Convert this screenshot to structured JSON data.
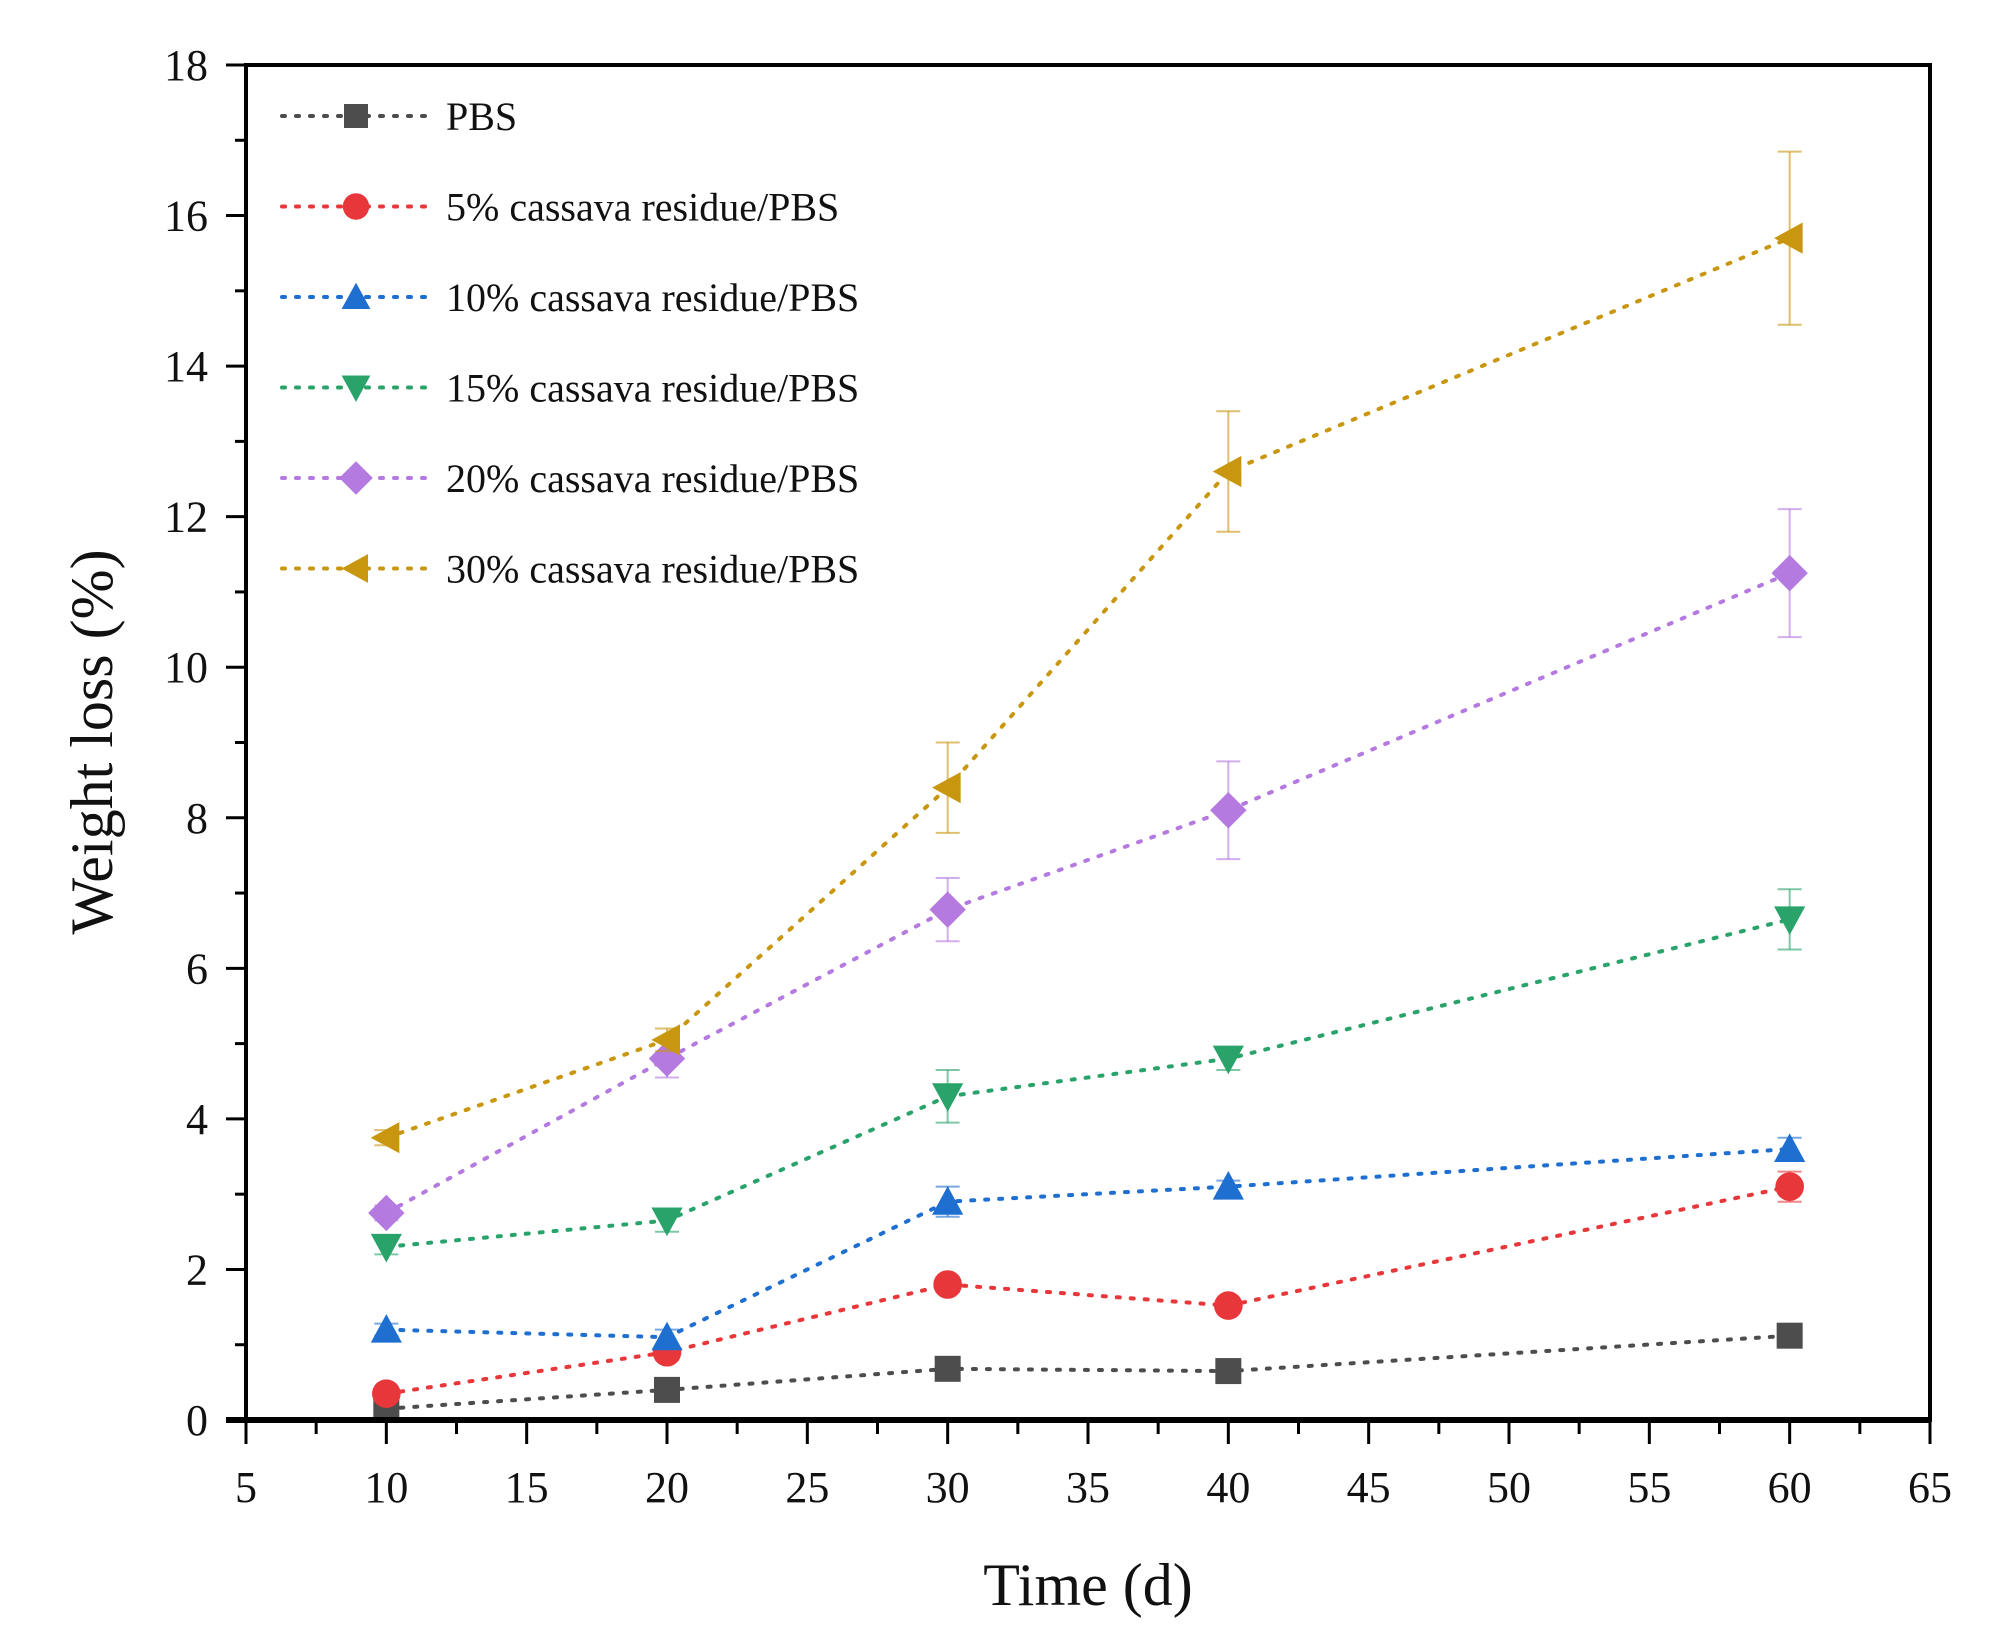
{
  "chart_data": {
    "type": "line",
    "title": "",
    "xlabel": "Time (d)",
    "ylabel": "Weight loss (%)",
    "xlim": [
      5,
      65
    ],
    "ylim": [
      0,
      18
    ],
    "xticks": [
      5,
      10,
      15,
      20,
      25,
      30,
      35,
      40,
      45,
      50,
      55,
      60,
      65
    ],
    "yticks": [
      0,
      2,
      4,
      6,
      8,
      10,
      12,
      14,
      16,
      18
    ],
    "grid": false,
    "legend_position": "top-left",
    "line_style": "dotted",
    "x": [
      10,
      20,
      30,
      40,
      60
    ],
    "series": [
      {
        "name": "PBS",
        "marker": "square",
        "color": "#4d4d4d",
        "values": [
          0.15,
          0.4,
          0.68,
          0.65,
          1.12
        ],
        "errors": [
          0.05,
          0.05,
          0.05,
          0.05,
          0.08
        ]
      },
      {
        "name": "5% cassava residue/PBS",
        "marker": "circle",
        "color": "#e8373a",
        "values": [
          0.35,
          0.9,
          1.8,
          1.52,
          3.1
        ],
        "errors": [
          0.08,
          0.1,
          0.1,
          0.08,
          0.2
        ]
      },
      {
        "name": "10% cassava residue/PBS",
        "marker": "triangle-up",
        "color": "#1f6fd1",
        "values": [
          1.2,
          1.1,
          2.9,
          3.1,
          3.6
        ],
        "errors": [
          0.08,
          0.1,
          0.2,
          0.08,
          0.15
        ]
      },
      {
        "name": "15% cassava residue/PBS",
        "marker": "triangle-down",
        "color": "#2aa36b",
        "values": [
          2.3,
          2.65,
          4.3,
          4.8,
          6.65
        ],
        "errors": [
          0.1,
          0.15,
          0.35,
          0.15,
          0.4
        ]
      },
      {
        "name": "20% cassava residue/PBS",
        "marker": "diamond",
        "color": "#b57ae0",
        "values": [
          2.75,
          4.8,
          6.78,
          8.1,
          11.25
        ],
        "errors": [
          0.1,
          0.25,
          0.42,
          0.65,
          0.85
        ]
      },
      {
        "name": "30% cassava residue/PBS",
        "marker": "triangle-left",
        "color": "#c9960f",
        "values": [
          3.75,
          5.05,
          8.4,
          12.6,
          15.7
        ],
        "errors": [
          0.1,
          0.15,
          0.6,
          0.8,
          1.15
        ]
      }
    ]
  }
}
